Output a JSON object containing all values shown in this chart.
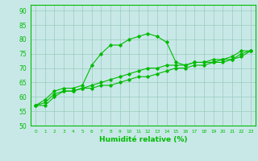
{
  "x": [
    0,
    1,
    2,
    3,
    4,
    5,
    6,
    7,
    8,
    9,
    10,
    11,
    12,
    13,
    14,
    15,
    16,
    17,
    18,
    19,
    20,
    21,
    22,
    23
  ],
  "y_max": [
    57,
    59,
    62,
    63,
    63,
    64,
    71,
    75,
    78,
    78,
    80,
    81,
    82,
    81,
    79,
    72,
    71,
    72,
    72,
    73,
    73,
    74,
    76,
    76
  ],
  "y_mean": [
    57,
    58,
    61,
    62,
    62,
    63,
    64,
    65,
    66,
    67,
    68,
    69,
    70,
    70,
    71,
    71,
    71,
    72,
    72,
    72,
    73,
    73,
    75,
    76
  ],
  "y_min": [
    57,
    57,
    60,
    62,
    62,
    63,
    63,
    64,
    64,
    65,
    66,
    67,
    67,
    68,
    69,
    70,
    70,
    71,
    71,
    72,
    72,
    73,
    74,
    76
  ],
  "line_color": "#00bb00",
  "bg_color": "#c8e8e8",
  "grid_color": "#99ccbb",
  "xlabel": "Humidité relative (%)",
  "ylim": [
    50,
    92
  ],
  "xlim": [
    -0.5,
    23.5
  ],
  "yticks": [
    50,
    55,
    60,
    65,
    70,
    75,
    80,
    85,
    90
  ],
  "xticks": [
    0,
    1,
    2,
    3,
    4,
    5,
    6,
    7,
    8,
    9,
    10,
    11,
    12,
    13,
    14,
    15,
    16,
    17,
    18,
    19,
    20,
    21,
    22,
    23
  ]
}
